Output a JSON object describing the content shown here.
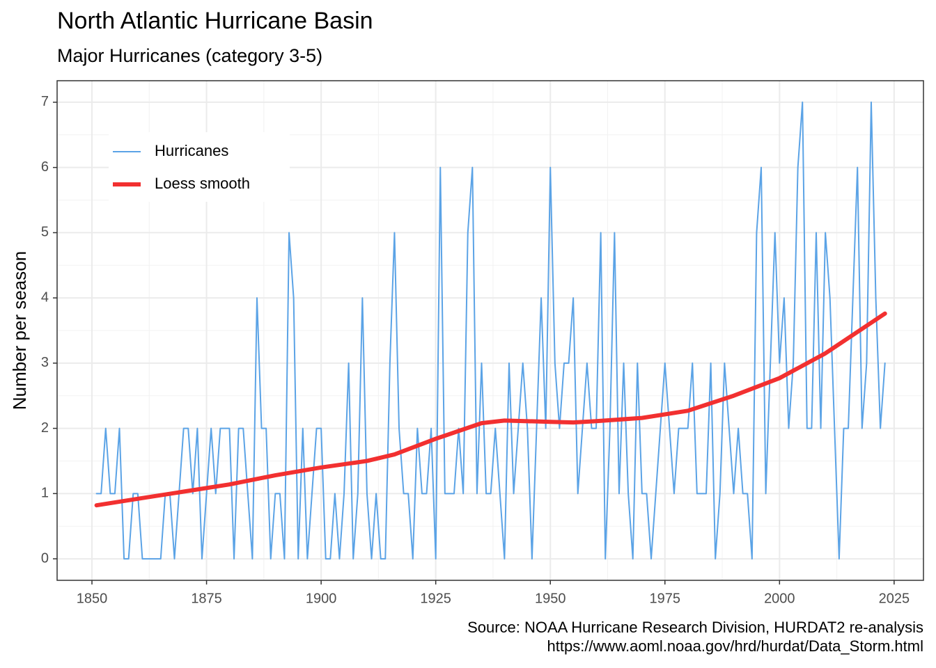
{
  "chart_data": {
    "type": "line",
    "title": "North Atlantic Hurricane Basin",
    "subtitle": "Major Hurricanes (category 3-5)",
    "y_label": "Number per season",
    "caption": [
      "Source: NOAA Hurricane Research Division, HURDAT2 re-analysis",
      "https://www.aoml.noaa.gov/hrd/hurdat/Data_Storm.html"
    ],
    "x": [
      1851,
      1852,
      1853,
      1854,
      1855,
      1856,
      1857,
      1858,
      1859,
      1860,
      1861,
      1862,
      1863,
      1864,
      1865,
      1866,
      1867,
      1868,
      1869,
      1870,
      1871,
      1872,
      1873,
      1874,
      1875,
      1876,
      1877,
      1878,
      1879,
      1880,
      1881,
      1882,
      1883,
      1884,
      1885,
      1886,
      1887,
      1888,
      1889,
      1890,
      1891,
      1892,
      1893,
      1894,
      1895,
      1896,
      1897,
      1898,
      1899,
      1900,
      1901,
      1902,
      1903,
      1904,
      1905,
      1906,
      1907,
      1908,
      1909,
      1910,
      1911,
      1912,
      1913,
      1914,
      1915,
      1916,
      1917,
      1918,
      1919,
      1920,
      1921,
      1922,
      1923,
      1924,
      1925,
      1926,
      1927,
      1928,
      1929,
      1930,
      1931,
      1932,
      1933,
      1934,
      1935,
      1936,
      1937,
      1938,
      1939,
      1940,
      1941,
      1942,
      1943,
      1944,
      1945,
      1946,
      1947,
      1948,
      1949,
      1950,
      1951,
      1952,
      1953,
      1954,
      1955,
      1956,
      1957,
      1958,
      1959,
      1960,
      1961,
      1962,
      1963,
      1964,
      1965,
      1966,
      1967,
      1968,
      1969,
      1970,
      1971,
      1972,
      1973,
      1974,
      1975,
      1976,
      1977,
      1978,
      1979,
      1980,
      1981,
      1982,
      1983,
      1984,
      1985,
      1986,
      1987,
      1988,
      1989,
      1990,
      1991,
      1992,
      1993,
      1994,
      1995,
      1996,
      1997,
      1998,
      1999,
      2000,
      2001,
      2002,
      2003,
      2004,
      2005,
      2006,
      2007,
      2008,
      2009,
      2010,
      2011,
      2012,
      2013,
      2014,
      2015,
      2016,
      2017,
      2018,
      2019,
      2020,
      2021,
      2022,
      2023
    ],
    "series": [
      {
        "name": "Hurricanes",
        "color": "#5ba3e6",
        "values": [
          1,
          1,
          2,
          1,
          1,
          2,
          0,
          0,
          1,
          1,
          0,
          0,
          0,
          0,
          0,
          1,
          1,
          0,
          1,
          2,
          2,
          1,
          2,
          0,
          1,
          2,
          1,
          2,
          2,
          2,
          0,
          2,
          2,
          1,
          0,
          4,
          2,
          2,
          0,
          1,
          1,
          0,
          5,
          4,
          0,
          2,
          0,
          1,
          2,
          2,
          0,
          0,
          1,
          0,
          1,
          3,
          0,
          1,
          4,
          1,
          0,
          1,
          0,
          0,
          3,
          5,
          2,
          1,
          1,
          0,
          2,
          1,
          1,
          2,
          0,
          6,
          1,
          1,
          1,
          2,
          1,
          5,
          6,
          1,
          3,
          1,
          1,
          2,
          1,
          0,
          3,
          1,
          2,
          3,
          2,
          0,
          2,
          4,
          2,
          6,
          3,
          2,
          3,
          3,
          4,
          1,
          2,
          3,
          2,
          2,
          5,
          0,
          2,
          5,
          1,
          3,
          1,
          0,
          3,
          1,
          1,
          0,
          1,
          2,
          3,
          2,
          1,
          2,
          2,
          2,
          3,
          1,
          1,
          1,
          3,
          0,
          1,
          3,
          2,
          1,
          2,
          1,
          1,
          0,
          5,
          6,
          1,
          3,
          5,
          3,
          4,
          2,
          3,
          6,
          7,
          2,
          2,
          5,
          2,
          5,
          4,
          2,
          0,
          2,
          2,
          4,
          6,
          2,
          3,
          7,
          4,
          2,
          3
        ]
      },
      {
        "name": "Loess smooth",
        "color": "#f23030",
        "x": [
          1851,
          1860,
          1870,
          1880,
          1890,
          1900,
          1910,
          1916,
          1925,
          1935,
          1940,
          1950,
          1955,
          1960,
          1970,
          1980,
          1990,
          2000,
          2010,
          2023
        ],
        "values": [
          0.82,
          0.92,
          1.03,
          1.14,
          1.28,
          1.4,
          1.5,
          1.6,
          1.84,
          2.08,
          2.12,
          2.1,
          2.09,
          2.11,
          2.16,
          2.27,
          2.5,
          2.77,
          3.15,
          3.76
        ]
      }
    ],
    "xlim": [
      1842.4,
      2031.4
    ],
    "xticks": [
      1850,
      1875,
      1900,
      1925,
      1950,
      1975,
      2000,
      2025
    ],
    "ylim": [
      -0.33,
      7.33
    ],
    "yticks": [
      0,
      1,
      2,
      3,
      4,
      5,
      6,
      7
    ],
    "grid": true,
    "legend": "top-left"
  }
}
